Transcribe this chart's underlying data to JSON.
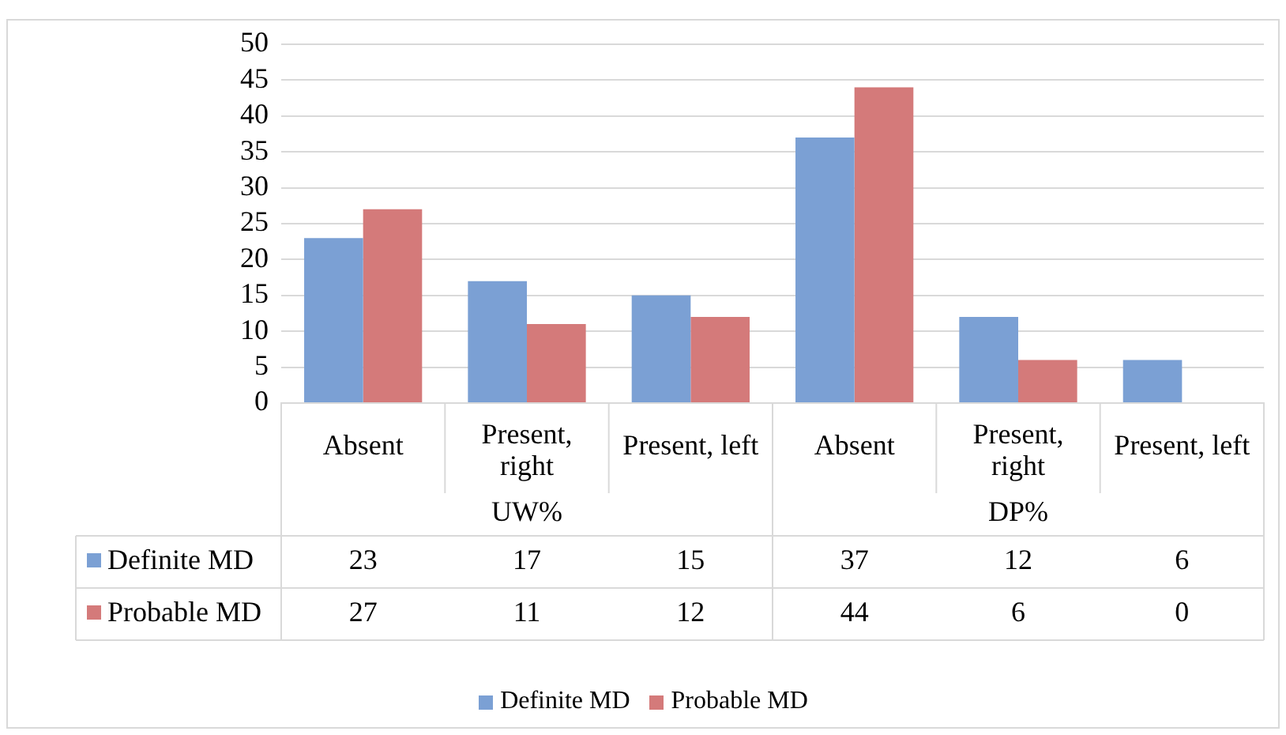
{
  "chart_data": {
    "type": "bar",
    "categories": [
      "Absent",
      "Present, right",
      "Present, left",
      "Absent",
      "Present, right",
      "Present, left"
    ],
    "annotations": [
      "UW%",
      "DP%"
    ],
    "series": [
      {
        "name": "Definite MD",
        "color": "#7ba0d4",
        "values": [
          23,
          17,
          15,
          37,
          12,
          6
        ]
      },
      {
        "name": "Probable MD",
        "color": "#d47a7a",
        "values": [
          27,
          11,
          12,
          44,
          6,
          0
        ]
      }
    ],
    "ylim": [
      0,
      50
    ],
    "yticks": [
      0,
      5,
      10,
      15,
      20,
      25,
      30,
      35,
      40,
      45,
      50
    ],
    "grid": "y",
    "legend": "bottom",
    "data_labels": true
  }
}
